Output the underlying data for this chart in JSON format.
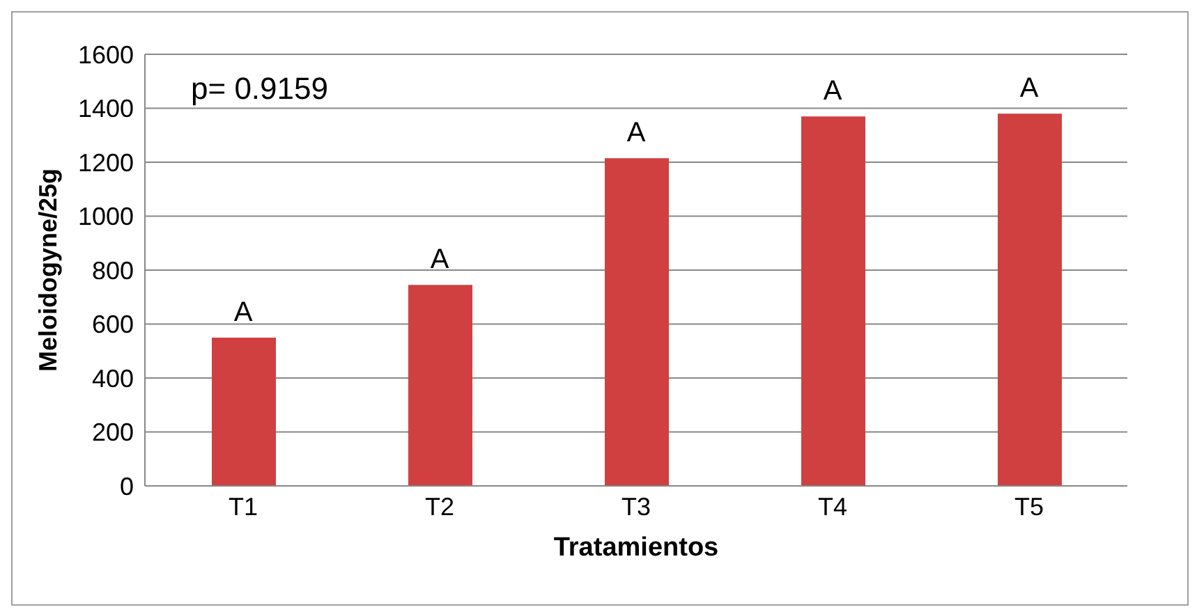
{
  "chart_data": {
    "type": "bar",
    "xlabel": "Tratamientos",
    "ylabel": "Meloidogyne/25g",
    "categories": [
      "T1",
      "T2",
      "T3",
      "T4",
      "T5"
    ],
    "values": [
      550,
      745,
      1215,
      1370,
      1380
    ],
    "color": "#d04040",
    "ylim": [
      0,
      1600
    ],
    "yticks": [
      0,
      200,
      400,
      600,
      800,
      1000,
      1200,
      1400,
      1600
    ],
    "grid": "y",
    "annotations": [
      "p= 0.9159",
      {
        "text": "A",
        "x": "T1",
        "y": 550
      },
      {
        "text": "A",
        "x": "T2",
        "y": 745
      },
      {
        "text": "A",
        "x": "T3",
        "y": 1215
      },
      {
        "text": "A",
        "x": "T4",
        "y": 1370
      },
      {
        "text": "A",
        "x": "T5",
        "y": 1380
      }
    ]
  }
}
